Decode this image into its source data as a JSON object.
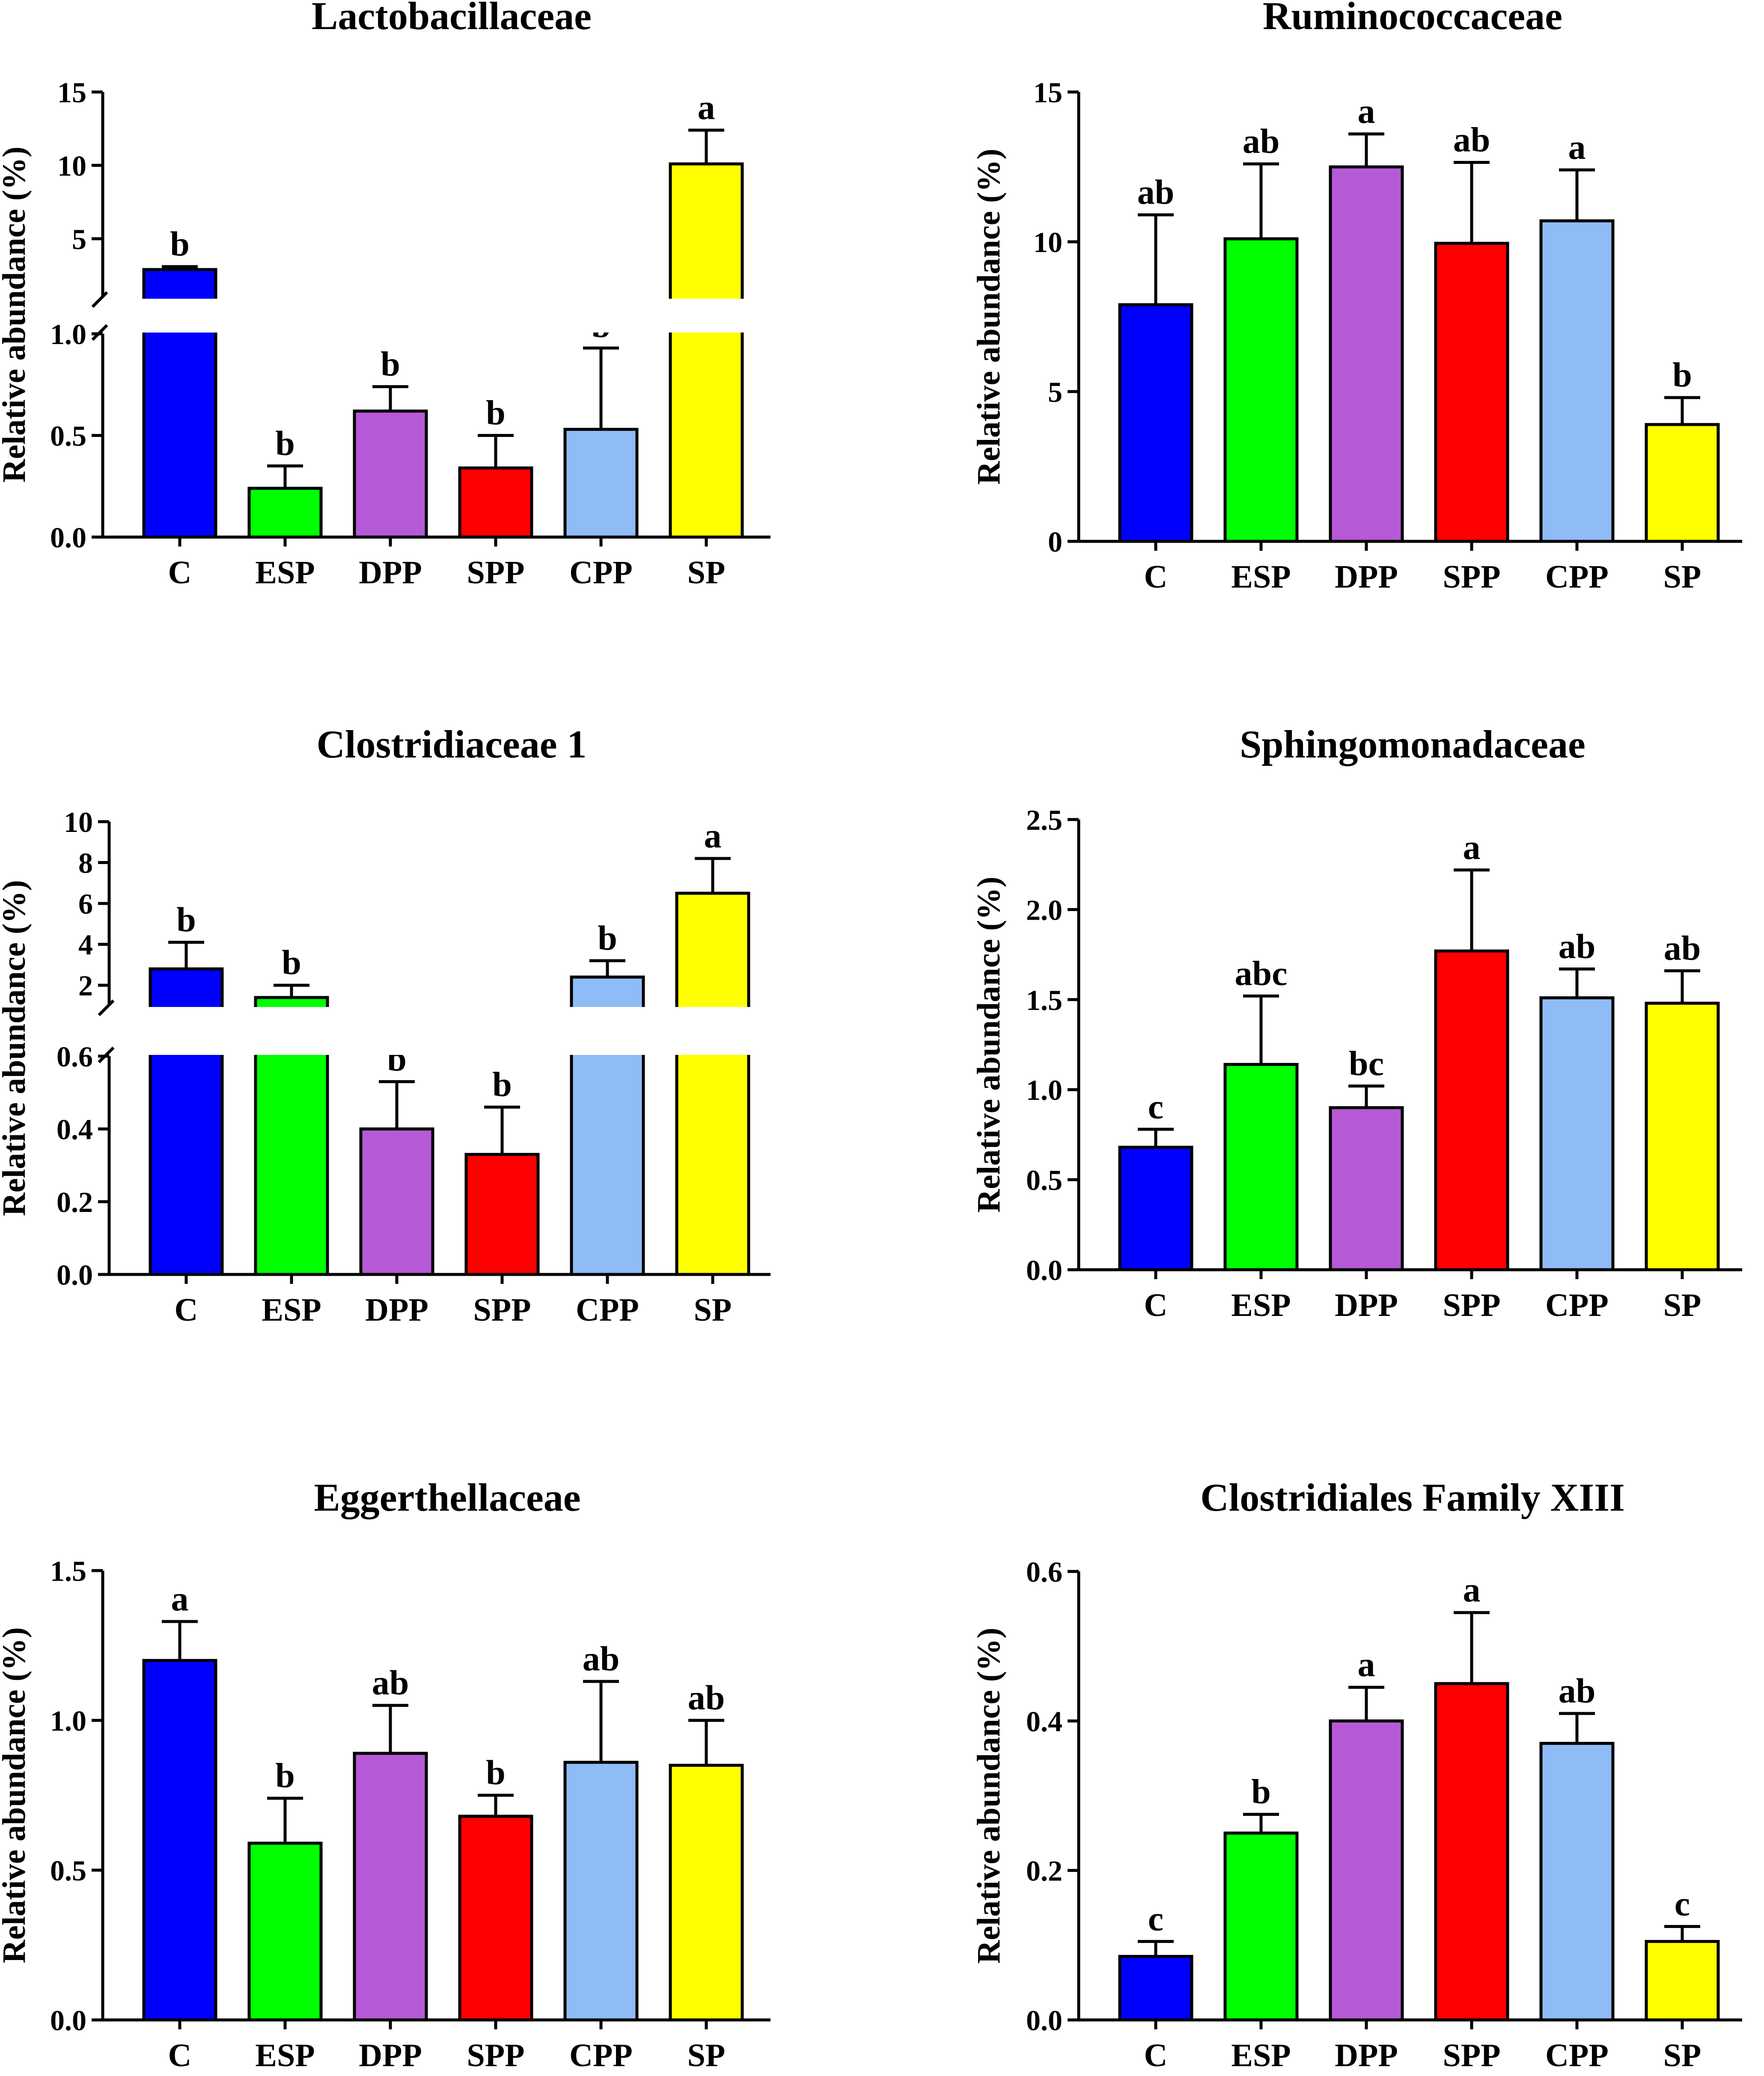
{
  "chart_data": [
    {
      "type": "bar",
      "title": "Lactobacillaceae",
      "ylabel": "Relative abundance (%)",
      "categories": [
        "C",
        "ESP",
        "DPP",
        "SPP",
        "CPP",
        "SP"
      ],
      "values": [
        2.9,
        0.24,
        0.62,
        0.34,
        0.53,
        10.1
      ],
      "errors": [
        0.2,
        0.11,
        0.12,
        0.16,
        0.4,
        2.3
      ],
      "significance": [
        "b",
        "b",
        "b",
        "b",
        "b",
        "a"
      ],
      "broken_axis": {
        "lower": [
          0,
          1.0
        ],
        "upper": [
          1.0,
          15
        ],
        "lower_ticks": [
          "0.0",
          "0.5",
          "1.0"
        ],
        "upper_ticks": [
          "5",
          "10",
          "15"
        ]
      }
    },
    {
      "type": "bar",
      "title": "Ruminococcaceae",
      "ylabel": "Relative abundance (%)",
      "categories": [
        "C",
        "ESP",
        "DPP",
        "SPP",
        "CPP",
        "SP"
      ],
      "values": [
        7.9,
        10.1,
        12.5,
        9.95,
        10.7,
        3.9
      ],
      "errors": [
        3.0,
        2.5,
        1.1,
        2.7,
        1.7,
        0.9
      ],
      "significance": [
        "ab",
        "ab",
        "a",
        "ab",
        "a",
        "b"
      ],
      "ylim": [
        0,
        15
      ],
      "yticks": [
        "0",
        "5",
        "10",
        "15"
      ]
    },
    {
      "type": "bar",
      "title": "Clostridiaceae 1",
      "ylabel": "Relative abundance (%)",
      "categories": [
        "C",
        "ESP",
        "DPP",
        "SPP",
        "CPP",
        "SP"
      ],
      "values": [
        2.8,
        1.4,
        0.4,
        0.33,
        2.4,
        6.5
      ],
      "errors": [
        1.3,
        0.6,
        0.13,
        0.13,
        0.8,
        1.7
      ],
      "significance": [
        "b",
        "b",
        "b",
        "b",
        "b",
        "a"
      ],
      "broken_axis": {
        "lower": [
          0,
          0.6
        ],
        "upper": [
          1.0,
          10
        ],
        "lower_ticks": [
          "0.0",
          "0.2",
          "0.4",
          "0.6"
        ],
        "upper_ticks": [
          "2",
          "4",
          "6",
          "8",
          "10"
        ]
      }
    },
    {
      "type": "bar",
      "title": "Sphingomonadaceae",
      "ylabel": "Relative abundance (%)",
      "categories": [
        "C",
        "ESP",
        "DPP",
        "SPP",
        "CPP",
        "SP"
      ],
      "values": [
        0.68,
        1.14,
        0.9,
        1.77,
        1.51,
        1.48
      ],
      "errors": [
        0.1,
        0.38,
        0.12,
        0.45,
        0.16,
        0.18
      ],
      "significance": [
        "c",
        "abc",
        "bc",
        "a",
        "ab",
        "ab"
      ],
      "ylim": [
        0,
        2.5
      ],
      "yticks": [
        "0.0",
        "0.5",
        "1.0",
        "1.5",
        "2.0",
        "2.5"
      ]
    },
    {
      "type": "bar",
      "title": "Eggerthellaceae",
      "ylabel": "Relative abundance (%)",
      "categories": [
        "C",
        "ESP",
        "DPP",
        "SPP",
        "CPP",
        "SP"
      ],
      "values": [
        1.2,
        0.59,
        0.89,
        0.68,
        0.86,
        0.85
      ],
      "errors": [
        0.13,
        0.15,
        0.16,
        0.07,
        0.27,
        0.15
      ],
      "significance": [
        "a",
        "b",
        "ab",
        "b",
        "ab",
        "ab"
      ],
      "ylim": [
        0,
        1.5
      ],
      "yticks": [
        "0.0",
        "0.5",
        "1.0",
        "1.5"
      ]
    },
    {
      "type": "bar",
      "title": "Clostridiales Family XIII",
      "ylabel": "Relative abundance (%)",
      "categories": [
        "C",
        "ESP",
        "DPP",
        "SPP",
        "CPP",
        "SP"
      ],
      "values": [
        0.085,
        0.25,
        0.4,
        0.45,
        0.37,
        0.105
      ],
      "errors": [
        0.02,
        0.025,
        0.045,
        0.095,
        0.04,
        0.02
      ],
      "significance": [
        "c",
        "b",
        "a",
        "a",
        "ab",
        "c"
      ],
      "ylim": [
        0,
        0.6
      ],
      "yticks": [
        "0.0",
        "0.2",
        "0.4",
        "0.6"
      ]
    }
  ],
  "colors": [
    "#0000ff",
    "#00ff00",
    "#b659d6",
    "#ff0000",
    "#8fbcf6",
    "#ffff00"
  ]
}
